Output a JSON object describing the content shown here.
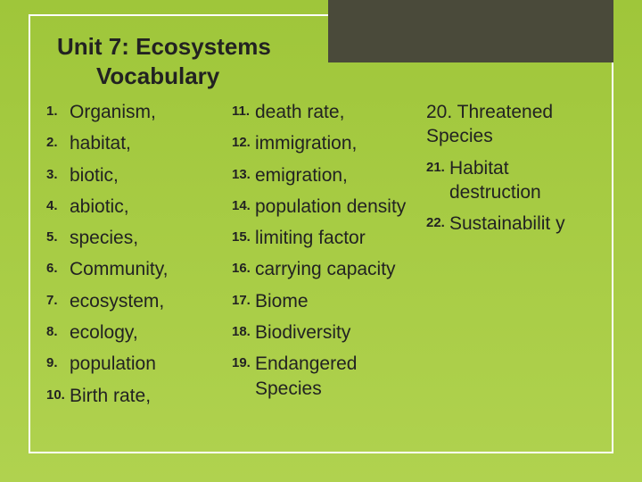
{
  "slide": {
    "title_line1": "Unit 7: Ecosystems",
    "title_line2": "Vocabulary",
    "background_gradient_top": "#9fc63a",
    "background_gradient_bottom": "#b0d24f",
    "frame_border_color": "#ffffff",
    "dark_rect_color": "#4a4a3a",
    "title_fontsize": 26,
    "num_fontsize": 15,
    "term_fontsize": 21,
    "text_color": "#222222"
  },
  "columns": {
    "col1": [
      {
        "num": "1.",
        "term": "Organism,"
      },
      {
        "num": "2.",
        "term": "habitat,"
      },
      {
        "num": "3.",
        "term": "biotic,"
      },
      {
        "num": "4.",
        "term": " abiotic,"
      },
      {
        "num": "5.",
        "term": "species,"
      },
      {
        "num": "6.",
        "term": "Community,"
      },
      {
        "num": "7.",
        "term": " ecosystem,"
      },
      {
        "num": "8.",
        "term": "ecology,"
      },
      {
        "num": "9.",
        "term": "population"
      },
      {
        "num": "10.",
        "term": "Birth rate,"
      }
    ],
    "col2": [
      {
        "num": "11.",
        "term": "death rate,"
      },
      {
        "num": "12.",
        "term": " immigration,"
      },
      {
        "num": "13.",
        "term": "emigration,"
      },
      {
        "num": "14.",
        "term": " population density"
      },
      {
        "num": "15.",
        "term": "limiting factor"
      },
      {
        "num": "16.",
        "term": "carrying capacity"
      },
      {
        "num": "17.",
        "term": "Biome"
      },
      {
        "num": "18.",
        "term": " Biodiversity"
      },
      {
        "num": "19.",
        "term": "Endangered Species"
      }
    ],
    "col3_header": "20. Threatened Species",
    "col3": [
      {
        "num": "21.",
        "term": "Habitat destruction"
      },
      {
        "num": "22.",
        "term": "Sustainabilit y"
      }
    ]
  }
}
